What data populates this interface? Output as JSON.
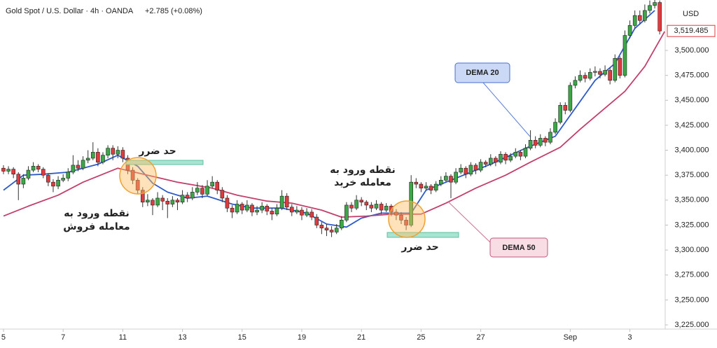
{
  "chart_data": {
    "type": "candlestick",
    "title": "Gold Spot / U.S. Dollar · 4h · OANDA",
    "change": "+2.785 (+0.08%)",
    "currency": "USD",
    "last_price": {
      "value": 3519.485,
      "label": "3,519.485"
    },
    "colors": {
      "up": "#3aa845",
      "down": "#e0393e"
    },
    "grid": false,
    "xlim": [
      -0.7,
      133.1
    ],
    "xticks": [
      {
        "value": 0,
        "label": "5"
      },
      {
        "value": 12,
        "label": "7"
      },
      {
        "value": 24,
        "label": "11"
      },
      {
        "value": 36,
        "label": "13"
      },
      {
        "value": 48,
        "label": "15"
      },
      {
        "value": 60,
        "label": "19"
      },
      {
        "value": 72,
        "label": "21"
      },
      {
        "value": 84,
        "label": "25"
      },
      {
        "value": 96,
        "label": "27"
      },
      {
        "value": 114,
        "label": "Sep"
      },
      {
        "value": 126,
        "label": "3"
      }
    ],
    "ylim": [
      3220.8,
      3550.5
    ],
    "yticks": [
      {
        "value": 3225,
        "label": "3,225.000"
      },
      {
        "value": 3250,
        "label": "3,250.000"
      },
      {
        "value": 3275,
        "label": "3,275.000"
      },
      {
        "value": 3300,
        "label": "3,300.000"
      },
      {
        "value": 3325,
        "label": "3,325.000"
      },
      {
        "value": 3350,
        "label": "3,350.000"
      },
      {
        "value": 3375,
        "label": "3,375.000"
      },
      {
        "value": 3400,
        "label": "3,400.000"
      },
      {
        "value": 3425,
        "label": "3,425.000"
      },
      {
        "value": 3450,
        "label": "3,450.000"
      },
      {
        "value": 3475,
        "label": "3,475.000"
      },
      {
        "value": 3500,
        "label": "3,500.000"
      }
    ],
    "candles": [
      [
        3382,
        3385,
        3376,
        3379
      ],
      [
        3379,
        3384,
        3376,
        3381
      ],
      [
        3381,
        3383,
        3372,
        3376
      ],
      [
        3376,
        3378,
        3350,
        3366
      ],
      [
        3366,
        3376,
        3362,
        3372
      ],
      [
        3372,
        3384,
        3370,
        3380
      ],
      [
        3380,
        3388,
        3378,
        3384
      ],
      [
        3384,
        3386,
        3378,
        3381
      ],
      [
        3381,
        3383,
        3372,
        3375
      ],
      [
        3375,
        3377,
        3364,
        3368
      ],
      [
        3368,
        3371,
        3358,
        3364
      ],
      [
        3364,
        3374,
        3361,
        3370
      ],
      [
        3370,
        3376,
        3368,
        3372
      ],
      [
        3372,
        3382,
        3369,
        3378
      ],
      [
        3378,
        3395,
        3376,
        3385
      ],
      [
        3385,
        3390,
        3379,
        3382
      ],
      [
        3382,
        3394,
        3380,
        3390
      ],
      [
        3390,
        3400,
        3387,
        3392
      ],
      [
        3392,
        3408,
        3390,
        3398
      ],
      [
        3398,
        3402,
        3384,
        3388
      ],
      [
        3388,
        3398,
        3386,
        3395
      ],
      [
        3395,
        3405,
        3392,
        3402
      ],
      [
        3402,
        3405,
        3390,
        3396
      ],
      [
        3396,
        3404,
        3392,
        3400
      ],
      [
        3400,
        3403,
        3388,
        3392
      ],
      [
        3392,
        3395,
        3376,
        3380
      ],
      [
        3380,
        3383,
        3366,
        3370
      ],
      [
        3370,
        3372,
        3356,
        3360
      ],
      [
        3360,
        3363,
        3343,
        3348
      ],
      [
        3348,
        3356,
        3344,
        3350
      ],
      [
        3350,
        3352,
        3335,
        3345
      ],
      [
        3345,
        3358,
        3343,
        3352
      ],
      [
        3352,
        3355,
        3340,
        3349
      ],
      [
        3349,
        3352,
        3332,
        3346
      ],
      [
        3346,
        3354,
        3343,
        3350
      ],
      [
        3350,
        3352,
        3340,
        3348
      ],
      [
        3348,
        3360,
        3346,
        3355
      ],
      [
        3355,
        3358,
        3348,
        3352
      ],
      [
        3352,
        3363,
        3350,
        3358
      ],
      [
        3358,
        3368,
        3355,
        3362
      ],
      [
        3362,
        3365,
        3352,
        3356
      ],
      [
        3356,
        3370,
        3354,
        3364
      ],
      [
        3364,
        3374,
        3362,
        3368
      ],
      [
        3368,
        3370,
        3356,
        3360
      ],
      [
        3360,
        3363,
        3348,
        3352
      ],
      [
        3352,
        3355,
        3338,
        3342
      ],
      [
        3342,
        3345,
        3332,
        3338
      ],
      [
        3338,
        3350,
        3336,
        3346
      ],
      [
        3346,
        3348,
        3336,
        3340
      ],
      [
        3340,
        3350,
        3338,
        3345
      ],
      [
        3345,
        3347,
        3334,
        3338
      ],
      [
        3338,
        3344,
        3335,
        3340
      ],
      [
        3340,
        3348,
        3337,
        3344
      ],
      [
        3344,
        3346,
        3335,
        3339
      ],
      [
        3339,
        3342,
        3330,
        3336
      ],
      [
        3336,
        3346,
        3334,
        3342
      ],
      [
        3342,
        3360,
        3340,
        3354
      ],
      [
        3354,
        3357,
        3340,
        3343
      ],
      [
        3343,
        3346,
        3334,
        3338
      ],
      [
        3338,
        3344,
        3336,
        3340
      ],
      [
        3340,
        3343,
        3330,
        3335
      ],
      [
        3335,
        3342,
        3333,
        3338
      ],
      [
        3338,
        3341,
        3330,
        3333
      ],
      [
        3333,
        3336,
        3322,
        3325
      ],
      [
        3325,
        3328,
        3316,
        3322
      ],
      [
        3322,
        3326,
        3314,
        3320
      ],
      [
        3320,
        3324,
        3313,
        3318
      ],
      [
        3318,
        3326,
        3316,
        3322
      ],
      [
        3322,
        3334,
        3320,
        3330
      ],
      [
        3330,
        3348,
        3328,
        3345
      ],
      [
        3345,
        3348,
        3338,
        3342
      ],
      [
        3342,
        3355,
        3340,
        3350
      ],
      [
        3350,
        3353,
        3344,
        3348
      ],
      [
        3348,
        3350,
        3340,
        3345
      ],
      [
        3345,
        3348,
        3338,
        3342
      ],
      [
        3342,
        3350,
        3340,
        3346
      ],
      [
        3346,
        3348,
        3336,
        3340
      ],
      [
        3340,
        3347,
        3338,
        3344
      ],
      [
        3344,
        3346,
        3334,
        3338
      ],
      [
        3338,
        3341,
        3330,
        3335
      ],
      [
        3335,
        3338,
        3326,
        3330
      ],
      [
        3330,
        3333,
        3320,
        3325
      ],
      [
        3325,
        3375,
        3323,
        3368
      ],
      [
        3368,
        3372,
        3362,
        3366
      ],
      [
        3366,
        3368,
        3358,
        3362
      ],
      [
        3362,
        3368,
        3360,
        3364
      ],
      [
        3364,
        3366,
        3356,
        3360
      ],
      [
        3360,
        3369,
        3358,
        3366
      ],
      [
        3366,
        3374,
        3364,
        3370
      ],
      [
        3370,
        3378,
        3368,
        3374
      ],
      [
        3374,
        3376,
        3352,
        3368
      ],
      [
        3368,
        3382,
        3366,
        3378
      ],
      [
        3378,
        3386,
        3376,
        3382
      ],
      [
        3382,
        3384,
        3372,
        3376
      ],
      [
        3376,
        3388,
        3374,
        3385
      ],
      [
        3385,
        3387,
        3376,
        3380
      ],
      [
        3380,
        3391,
        3378,
        3388
      ],
      [
        3388,
        3390,
        3383,
        3386
      ],
      [
        3386,
        3396,
        3384,
        3392
      ],
      [
        3392,
        3394,
        3384,
        3388
      ],
      [
        3388,
        3399,
        3386,
        3396
      ],
      [
        3396,
        3398,
        3386,
        3390
      ],
      [
        3390,
        3397,
        3388,
        3394
      ],
      [
        3394,
        3402,
        3392,
        3398
      ],
      [
        3398,
        3400,
        3390,
        3394
      ],
      [
        3394,
        3406,
        3392,
        3402
      ],
      [
        3402,
        3420,
        3400,
        3410
      ],
      [
        3410,
        3414,
        3402,
        3405
      ],
      [
        3405,
        3416,
        3403,
        3412
      ],
      [
        3412,
        3414,
        3404,
        3408
      ],
      [
        3408,
        3422,
        3406,
        3418
      ],
      [
        3418,
        3432,
        3416,
        3428
      ],
      [
        3428,
        3448,
        3426,
        3445
      ],
      [
        3445,
        3448,
        3436,
        3440
      ],
      [
        3440,
        3468,
        3438,
        3465
      ],
      [
        3465,
        3474,
        3462,
        3470
      ],
      [
        3470,
        3480,
        3468,
        3475
      ],
      [
        3475,
        3478,
        3468,
        3472
      ],
      [
        3472,
        3482,
        3470,
        3478
      ],
      [
        3478,
        3484,
        3474,
        3479
      ],
      [
        3479,
        3482,
        3472,
        3476
      ],
      [
        3476,
        3485,
        3474,
        3480
      ],
      [
        3480,
        3483,
        3466,
        3470
      ],
      [
        3470,
        3496,
        3468,
        3492
      ],
      [
        3492,
        3494,
        3472,
        3475
      ],
      [
        3475,
        3520,
        3473,
        3515
      ],
      [
        3515,
        3530,
        3512,
        3525
      ],
      [
        3525,
        3540,
        3522,
        3535
      ],
      [
        3535,
        3540,
        3526,
        3530
      ],
      [
        3530,
        3546,
        3528,
        3540
      ],
      [
        3540,
        3550,
        3537,
        3545
      ],
      [
        3545,
        3552,
        3542,
        3548
      ],
      [
        3548,
        3550,
        3516,
        3519.485
      ]
    ],
    "series": [
      {
        "name": "DEMA 20",
        "color": "#2f5bc8",
        "x": [
          0,
          4,
          8,
          13,
          19,
          23,
          27,
          30,
          33,
          37,
          41,
          46,
          50,
          56,
          61,
          65,
          69,
          72,
          76,
          80,
          82,
          85,
          91,
          98,
          105,
          111,
          115,
          119,
          123,
          127,
          131
        ],
        "values": [
          3360,
          3375,
          3376,
          3378,
          3386,
          3395,
          3384,
          3367,
          3358,
          3352,
          3354,
          3346,
          3342,
          3342,
          3337,
          3326,
          3323,
          3332,
          3337,
          3337,
          3337,
          3360,
          3372,
          3386,
          3402,
          3414,
          3442,
          3470,
          3487,
          3522,
          3540
        ]
      },
      {
        "name": "DEMA 50",
        "color": "#c2406b",
        "x": [
          0,
          5,
          11,
          16,
          23,
          29,
          35,
          42,
          47,
          53,
          58,
          64,
          68,
          73,
          78,
          84,
          89,
          95,
          101,
          106,
          112,
          116,
          120,
          125,
          129,
          133
        ],
        "values": [
          3334,
          3344,
          3355,
          3368,
          3382,
          3375,
          3368,
          3362,
          3355,
          3349,
          3347,
          3340,
          3333,
          3334,
          3336,
          3336,
          3347,
          3362,
          3375,
          3388,
          3403,
          3421,
          3438,
          3459,
          3484,
          3519
        ]
      }
    ],
    "annotations": {
      "stop_loss": [
        "حد ضرر",
        "حد ضرر"
      ],
      "sell_entry": [
        "نقطه ورود به",
        "معامله فروش"
      ],
      "buy_entry": [
        "نقطه ورود به",
        "معامله خرید"
      ]
    }
  }
}
